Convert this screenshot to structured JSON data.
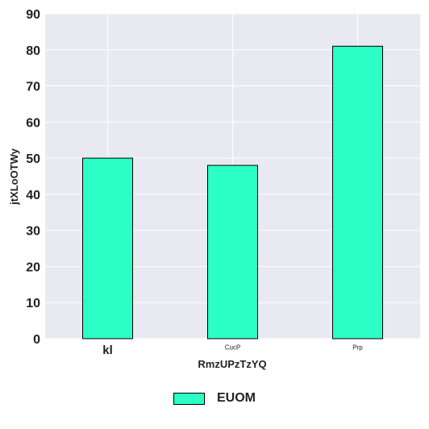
{
  "chart_data": {
    "type": "bar",
    "categories": [
      "kl",
      "CucP",
      "Prp"
    ],
    "series": [
      {
        "name": "EUOM",
        "values": [
          50,
          48,
          81
        ],
        "color": "#2cffc6"
      }
    ],
    "xlabel": "RmzUPzTzYQ",
    "ylabel": "jtXLoOTWy",
    "ylim": [
      0,
      90
    ],
    "yticks": [
      0,
      10,
      20,
      30,
      40,
      50,
      60,
      70,
      80,
      90
    ],
    "grid": true,
    "background": "#e9e9f2",
    "legend_position": "bottom-center"
  }
}
